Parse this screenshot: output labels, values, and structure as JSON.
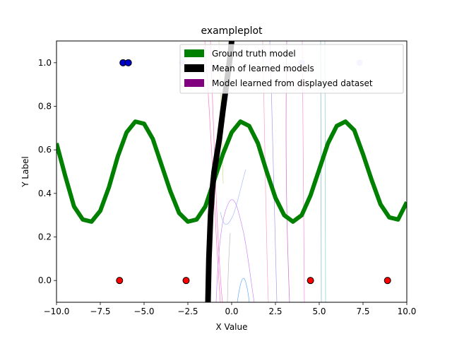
{
  "chart_data": {
    "type": "line",
    "title": "exampleplot",
    "xlabel": "X Value",
    "ylabel": "Y Label",
    "xlim": [
      -10,
      10
    ],
    "ylim": [
      -0.1,
      1.1
    ],
    "xticks": [
      "−10.0",
      "−7.5",
      "−5.0",
      "−2.5",
      "0.0",
      "2.5",
      "5.0",
      "7.5",
      "10.0"
    ],
    "xtick_values": [
      -10,
      -7.5,
      -5,
      -2.5,
      0,
      2.5,
      5,
      7.5,
      10
    ],
    "yticks": [
      "0.0",
      "0.2",
      "0.4",
      "0.6",
      "0.8",
      "1.0"
    ],
    "ytick_values": [
      0,
      0.2,
      0.4,
      0.6,
      0.8,
      1.0
    ],
    "legend_placement": "top-right",
    "legend": [
      {
        "label": "Ground truth model",
        "color": "#008000"
      },
      {
        "label": "Mean of learned models",
        "color": "#000000"
      },
      {
        "label": "Model learned from displayed dataset",
        "color": "#800080"
      }
    ],
    "ground_truth": {
      "color": "#008000",
      "x": [
        -10,
        -9.5,
        -9,
        -8.5,
        -8,
        -7.5,
        -7,
        -6.5,
        -6,
        -5.5,
        -5,
        -4.5,
        -4,
        -3.5,
        -3,
        -2.5,
        -2,
        -1.5,
        -1,
        -0.5,
        0,
        0.5,
        1,
        1.5,
        2,
        2.5,
        3,
        3.5,
        4,
        4.5,
        5,
        5.5,
        6,
        6.5,
        7,
        7.5,
        8,
        8.5,
        9,
        9.5,
        10
      ],
      "y": [
        0.63,
        0.48,
        0.34,
        0.28,
        0.27,
        0.32,
        0.43,
        0.57,
        0.68,
        0.73,
        0.72,
        0.65,
        0.53,
        0.41,
        0.31,
        0.27,
        0.28,
        0.34,
        0.46,
        0.58,
        0.68,
        0.73,
        0.71,
        0.63,
        0.5,
        0.38,
        0.3,
        0.27,
        0.3,
        0.39,
        0.51,
        0.63,
        0.71,
        0.73,
        0.69,
        0.58,
        0.46,
        0.35,
        0.29,
        0.28,
        0.36
      ]
    },
    "mean_model": {
      "color": "#000000",
      "x": [
        -1.35,
        -1.3,
        -1.2,
        -1.1,
        -1.0,
        -0.9,
        -0.7,
        -0.5,
        -0.3,
        -0.1,
        0.0
      ],
      "y": [
        -0.1,
        0.1,
        0.3,
        0.42,
        0.5,
        0.55,
        0.65,
        0.78,
        0.9,
        1.02,
        1.1
      ]
    },
    "true_points": [
      {
        "x": -6.2,
        "y": 1.0,
        "color": "#0000cc"
      },
      {
        "x": -5.9,
        "y": 1.0,
        "color": "#0000cc"
      },
      {
        "x": -2.8,
        "y": 1.0,
        "color": "#ccccff"
      },
      {
        "x": 4.0,
        "y": 1.0,
        "color": "#ccccff"
      },
      {
        "x": 7.3,
        "y": 1.0,
        "color": "#ccccff"
      }
    ],
    "false_points": [
      {
        "x": -6.4,
        "y": 0.0,
        "color": "#ff0000"
      },
      {
        "x": -2.6,
        "y": 0.0,
        "color": "#ff0000"
      },
      {
        "x": 4.5,
        "y": 0.0,
        "color": "#ff0000"
      },
      {
        "x": 8.9,
        "y": 0.0,
        "color": "#ff0000"
      }
    ]
  }
}
